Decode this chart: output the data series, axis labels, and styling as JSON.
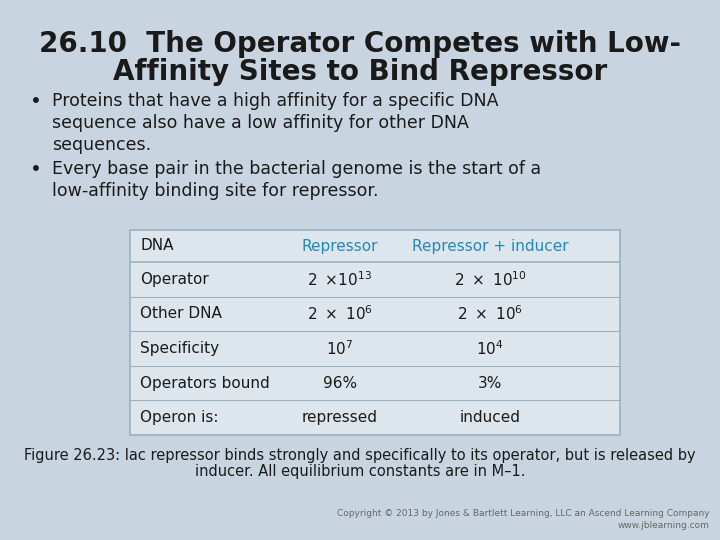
{
  "title_line1": "26.10  The Operator Competes with Low-",
  "title_line2": "Affinity Sites to Bind Repressor",
  "title_fontsize": 20,
  "bg_color": "#c8d5e0",
  "text_color": "#1a1a1a",
  "bullet1_lines": [
    "Proteins that have a high affinity for a specific DNA",
    "sequence also have a low affinity for other DNA",
    "sequences."
  ],
  "bullet2_lines": [
    "Every base pair in the bacterial genome is the start of a",
    "low-affinity binding site for repressor."
  ],
  "table_header": [
    "DNA",
    "Repressor",
    "Repressor + inducer"
  ],
  "table_rows": [
    [
      "Operator",
      "$2\\ \\times\\!10^{13}$",
      "$2\\ \\times\\ 10^{10}$"
    ],
    [
      "Other DNA",
      "$2\\ \\times\\ 10^{6}$",
      "$2\\ \\times\\ 10^{6}$"
    ],
    [
      "Specificity",
      "$10^{7}$",
      "$10^{4}$"
    ],
    [
      "Operators bound",
      "96%",
      "3%"
    ],
    [
      "Operon is:",
      "repressed",
      "induced"
    ]
  ],
  "figure_caption_line1": "Figure 26.23: lac repressor binds strongly and specifically to its operator, but is released by",
  "figure_caption_line2": "inducer. All equilibrium constants are in M–1.",
  "copyright": "Copyright © 2013 by Jones & Bartlett Learning, LLC an Ascend Learning Company",
  "website": "www.jblearning.com",
  "header_color": "#2288bb",
  "table_bg": "#dde6ed",
  "table_line_color": "#9ab0c0",
  "bullet_fs": 12.5,
  "table_fs": 11,
  "caption_fs": 10.5,
  "copyright_fs": 6.5
}
